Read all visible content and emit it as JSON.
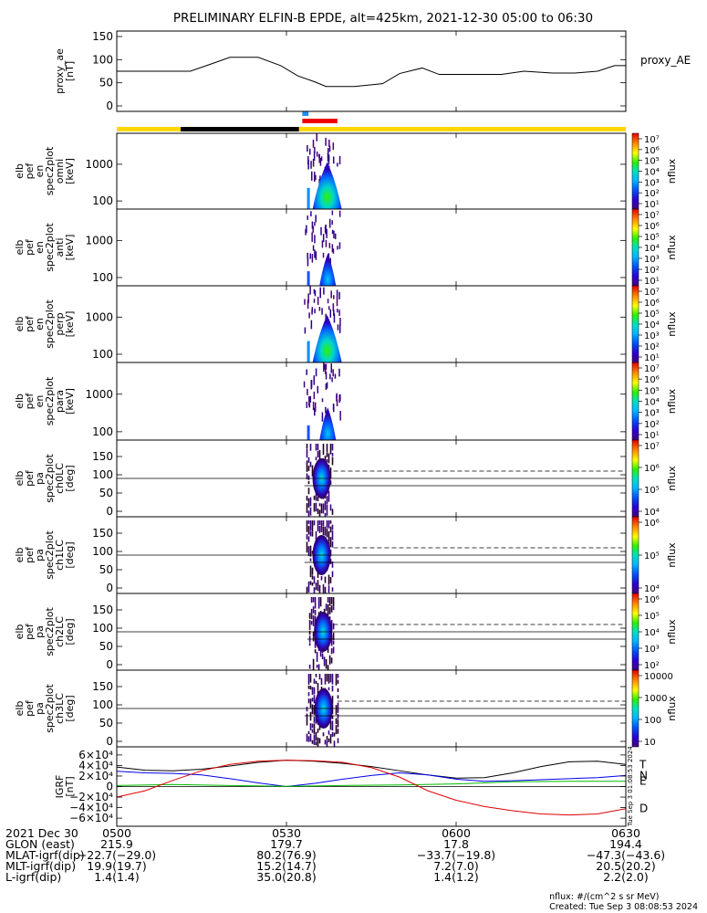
{
  "chart_data": {
    "type": "heatmap",
    "title": "PRELIMINARY ELFIN-B EPDE, alt=425km, 2021-12-30 05:00 to 06:30",
    "time_range": [
      "05:00",
      "06:30"
    ],
    "x_tick_labels": [
      "0500",
      "0530",
      "0600",
      "0630"
    ],
    "x_tick_minutes": [
      0,
      30,
      60,
      90
    ],
    "status_bars": {
      "bar_colors": {
        "yellow": "#ffd700",
        "black": "#000000",
        "red": "#ee0000",
        "blue": "#1e90ff"
      },
      "yellow_span_minutes": [
        0,
        90
      ],
      "black_span_minutes": [
        11.3,
        32.2
      ],
      "red_span_minutes": [
        32.8,
        39.0
      ],
      "blue_span_minutes": [
        32.8,
        33.9
      ]
    },
    "panels": [
      {
        "kind": "line",
        "ylabel": [
          "proxy_ae",
          "[nT]"
        ],
        "ylim": [
          0,
          150
        ],
        "y_ticks": [
          0,
          50,
          100,
          150
        ],
        "legend": "proxy_AE",
        "series": [
          {
            "name": "proxy_AE",
            "x": [
              0,
              5,
              13,
              17,
              20,
              25,
              29,
              32,
              35,
              37,
              42,
              47,
              50,
              54,
              57,
              62,
              68,
              72,
              77,
              81,
              85,
              88,
              90
            ],
            "y": [
              75,
              75,
              75,
              92,
              105,
              105,
              87,
              65,
              52,
              42,
              42,
              48,
              70,
              82,
              68,
              68,
              68,
              75,
              71,
              71,
              75,
              87,
              87
            ]
          }
        ]
      },
      {
        "kind": "spectrogram",
        "ylabel": [
          "elb",
          "pef",
          "en",
          "spec2plot",
          "omni",
          "[keV]"
        ],
        "ylim_log": [
          60,
          7000
        ],
        "y_ticks": [
          100,
          1000
        ],
        "colorbar": {
          "label": "nflux",
          "log_range": [
            1,
            7
          ],
          "ticks": [
            "10¹",
            "10²",
            "10³",
            "10⁴",
            "10⁵",
            "10⁶",
            "10⁷"
          ]
        },
        "activity_minutes": [
          33.0,
          39.5
        ],
        "peak_minute": 37.2,
        "intensity": 1.0
      },
      {
        "kind": "spectrogram",
        "ylabel": [
          "elb",
          "pef",
          "en",
          "spec2plot",
          "anti",
          "[keV]"
        ],
        "ylim_log": [
          60,
          7000
        ],
        "y_ticks": [
          100,
          1000
        ],
        "colorbar": {
          "label": "nflux",
          "log_range": [
            1,
            7
          ],
          "ticks": [
            "10¹",
            "10²",
            "10³",
            "10⁴",
            "10⁵",
            "10⁶",
            "10⁷"
          ]
        },
        "activity_minutes": [
          33.0,
          39.5
        ],
        "peak_minute": 37.3,
        "intensity": 0.5
      },
      {
        "kind": "spectrogram",
        "ylabel": [
          "elb",
          "pef",
          "en",
          "spec2plot",
          "perp",
          "[keV]"
        ],
        "ylim_log": [
          60,
          7000
        ],
        "y_ticks": [
          100,
          1000
        ],
        "colorbar": {
          "label": "nflux",
          "log_range": [
            1,
            7
          ],
          "ticks": [
            "10¹",
            "10²",
            "10³",
            "10⁴",
            "10⁵",
            "10⁶",
            "10⁷"
          ]
        },
        "activity_minutes": [
          33.0,
          39.5
        ],
        "peak_minute": 37.2,
        "intensity": 1.0
      },
      {
        "kind": "spectrogram",
        "ylabel": [
          "elb",
          "pef",
          "en",
          "spec2plot",
          "para",
          "[keV]"
        ],
        "ylim_log": [
          60,
          7000
        ],
        "y_ticks": [
          100,
          1000
        ],
        "colorbar": {
          "label": "nflux",
          "log_range": [
            1,
            7
          ],
          "ticks": [
            "10¹",
            "10²",
            "10³",
            "10⁴",
            "10⁵",
            "10⁶",
            "10⁷"
          ]
        },
        "activity_minutes": [
          33.0,
          39.5
        ],
        "peak_minute": 37.3,
        "intensity": 0.6
      },
      {
        "kind": "pitch",
        "ylabel": [
          "elb",
          "pef",
          "pa",
          "spec2plot",
          "ch0LC",
          "[deg]"
        ],
        "ylim": [
          0,
          180
        ],
        "y_ticks": [
          0,
          50,
          100,
          150
        ],
        "colorbar": {
          "label": "nflux",
          "log_range": [
            3.5,
            7
          ],
          "ticks": [
            "10⁴",
            "10⁵",
            "10⁶",
            "10⁷"
          ]
        },
        "activity_minutes": [
          33.5,
          38.3
        ],
        "lines_deg": [
          90,
          70,
          110
        ]
      },
      {
        "kind": "pitch",
        "ylabel": [
          "elb",
          "pef",
          "pa",
          "spec2plot",
          "ch1LC",
          "[deg]"
        ],
        "ylim": [
          0,
          180
        ],
        "y_ticks": [
          0,
          50,
          100,
          150
        ],
        "colorbar": {
          "label": "nflux",
          "log_range": [
            3,
            7
          ],
          "ticks": [
            "10⁴",
            "10⁵",
            "10⁶"
          ]
        },
        "activity_minutes": [
          33.5,
          38.3
        ],
        "lines_deg": [
          90,
          70,
          110
        ]
      },
      {
        "kind": "pitch",
        "ylabel": [
          "elb",
          "pef",
          "pa",
          "spec2plot",
          "ch2LC",
          "[deg]"
        ],
        "ylim": [
          0,
          180
        ],
        "y_ticks": [
          0,
          50,
          100,
          150
        ],
        "colorbar": {
          "label": "nflux",
          "log_range": [
            2,
            6
          ],
          "ticks": [
            "10²",
            "10³",
            "10⁴",
            "10⁵",
            "10⁶"
          ]
        },
        "activity_minutes": [
          34.0,
          38.3
        ],
        "lines_deg": [
          90,
          70,
          110
        ]
      },
      {
        "kind": "pitch",
        "ylabel": [
          "elb",
          "pef",
          "pa",
          "spec2plot",
          "ch3LC",
          "[deg]"
        ],
        "ylim": [
          0,
          180
        ],
        "y_ticks": [
          0,
          50,
          100,
          150
        ],
        "colorbar": {
          "label": "nflux",
          "log_range": [
            1,
            4
          ],
          "ticks": [
            "10",
            "100",
            "1000",
            "10000"
          ]
        },
        "activity_minutes": [
          33.5,
          39.0
        ],
        "lines_deg": [
          90,
          70,
          110
        ]
      },
      {
        "kind": "line",
        "ylabel": [
          "IGRF",
          "[nT]"
        ],
        "ylim": [
          -65000,
          65000
        ],
        "y_ticks": [
          "6×10⁴",
          "4×10⁴",
          "2×10⁴",
          "0",
          "−2×10⁴",
          "−4×10⁴",
          "−6×10⁴"
        ],
        "y_tick_values": [
          60000,
          40000,
          20000,
          0,
          -20000,
          -40000,
          -60000
        ],
        "series": [
          {
            "name": "T",
            "color": "#000000",
            "x": [
              0,
              5,
              10,
              15,
              20,
              25,
              30,
              35,
              40,
              45,
              50,
              55,
              60,
              65,
              70,
              75,
              80,
              85,
              90
            ],
            "y": [
              37000,
              31000,
              30000,
              33000,
              39000,
              46000,
              50000,
              48000,
              44000,
              38000,
              30000,
              22000,
              16000,
              17000,
              26000,
              38000,
              47000,
              48000,
              42000
            ]
          },
          {
            "name": "N",
            "color": "#0000ee",
            "x": [
              0,
              5,
              10,
              15,
              20,
              25,
              30,
              35,
              40,
              45,
              50,
              55,
              60,
              65,
              70,
              75,
              80,
              85,
              90
            ],
            "y": [
              29000,
              26000,
              25000,
              22000,
              15000,
              7000,
              0,
              6000,
              14000,
              21000,
              26000,
              22000,
              14000,
              10000,
              11000,
              13000,
              15000,
              17000,
              21000
            ]
          },
          {
            "name": "E",
            "color": "#00bb00",
            "x": [
              0,
              10,
              20,
              30,
              40,
              50,
              60,
              70,
              80,
              90
            ],
            "y": [
              2000,
              4000,
              2000,
              500,
              2000,
              3000,
              5000,
              9000,
              10000,
              10000
            ]
          },
          {
            "name": "D",
            "color": "#dd0000",
            "x": [
              0,
              5,
              10,
              15,
              20,
              25,
              30,
              35,
              40,
              45,
              50,
              55,
              60,
              65,
              70,
              75,
              80,
              85,
              90
            ],
            "y": [
              -20000,
              -8000,
              12000,
              30000,
              42000,
              48000,
              50000,
              49000,
              46000,
              36000,
              18000,
              -8000,
              -26000,
              -38000,
              -46000,
              -52000,
              -54000,
              -52000,
              -42000
            ]
          }
        ]
      }
    ]
  },
  "footer": {
    "rows": [
      {
        "label": "2021 Dec 30",
        "values": [
          "0500",
          "0530",
          "0600",
          "0630"
        ]
      },
      {
        "label": "GLON (east)",
        "values": [
          "215.9",
          "179.7",
          "17.8",
          "194.4"
        ]
      },
      {
        "label": "MLAT-igrf(dip)",
        "values": [
          "−22.7(−29.0)",
          "80.2(76.9)",
          "−33.7(−19.8)",
          "−47.3(−43.6)"
        ]
      },
      {
        "label": "MLT-igrf(dip)",
        "values": [
          "19.9(19.7)",
          "15.2(14.7)",
          "7.2(7.0)",
          "20.5(20.2)"
        ]
      },
      {
        "label": "L-igrf(dip)",
        "values": [
          "1.4(1.4)",
          "35.0(20.8)",
          "1.4(1.2)",
          "2.2(2.0)"
        ]
      }
    ],
    "units_note": "nflux: #/(cm^2 s sr MeV)",
    "created": "Created: Tue Sep  3 08:08:53 2024",
    "side_stamp": "Tue Sep  3 01:08:53 2024"
  }
}
